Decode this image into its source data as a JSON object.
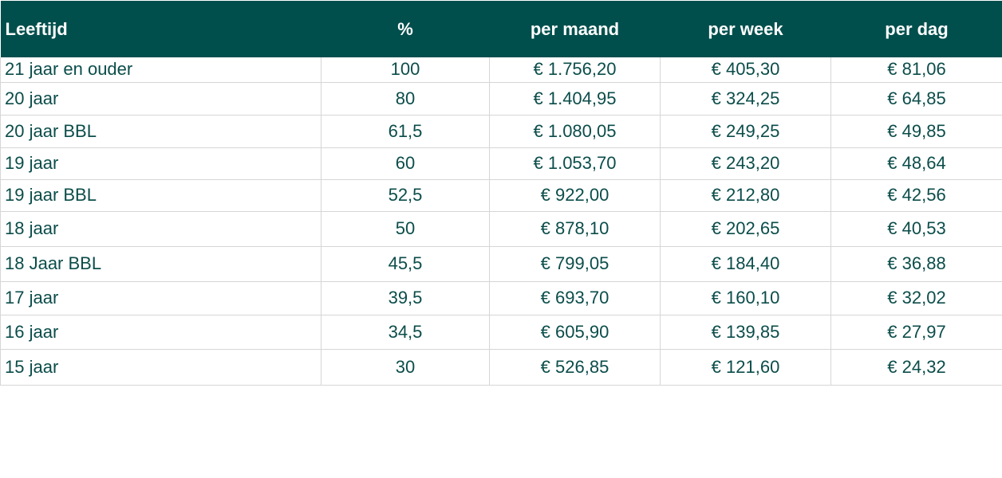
{
  "table": {
    "headers": {
      "age": "Leeftijd",
      "percent": "%",
      "per_month": "per maand",
      "per_week": "per week",
      "per_day": "per dag"
    },
    "rows": [
      {
        "age": "21 jaar en ouder",
        "percent": "100",
        "per_month": "€ 1.756,20",
        "per_week": "€ 405,30",
        "per_day": "€ 81,06"
      },
      {
        "age": "20 jaar",
        "percent": "80",
        "per_month": "€ 1.404,95",
        "per_week": "€ 324,25",
        "per_day": "€ 64,85"
      },
      {
        "age": "20 jaar BBL",
        "percent": "61,5",
        "per_month": "€ 1.080,05",
        "per_week": "€ 249,25",
        "per_day": "€ 49,85"
      },
      {
        "age": "19 jaar",
        "percent": "60",
        "per_month": "€ 1.053,70",
        "per_week": "€ 243,20",
        "per_day": "€ 48,64"
      },
      {
        "age": "19 jaar BBL",
        "percent": "52,5",
        "per_month": "€ 922,00",
        "per_week": "€ 212,80",
        "per_day": "€ 42,56"
      },
      {
        "age": "18 jaar",
        "percent": "50",
        "per_month": "€ 878,10",
        "per_week": "€ 202,65",
        "per_day": "€ 40,53"
      },
      {
        "age": "18 Jaar BBL",
        "percent": "45,5",
        "per_month": "€ 799,05",
        "per_week": "€ 184,40",
        "per_day": "€ 36,88"
      },
      {
        "age": "17 jaar",
        "percent": "39,5",
        "per_month": "€ 693,70",
        "per_week": "€ 160,10",
        "per_day": "€ 32,02"
      },
      {
        "age": "16 jaar",
        "percent": "34,5",
        "per_month": "€ 605,90",
        "per_week": "€ 139,85",
        "per_day": "€ 27,97"
      },
      {
        "age": "15 jaar",
        "percent": "30",
        "per_month": "€ 526,85",
        "per_week": "€ 121,60",
        "per_day": "€ 24,32"
      }
    ]
  },
  "colors": {
    "header_bg": "#004f4d",
    "header_text": "#ffffff",
    "cell_text": "#0b4d4a",
    "grid_line": "#d6d6d6"
  }
}
